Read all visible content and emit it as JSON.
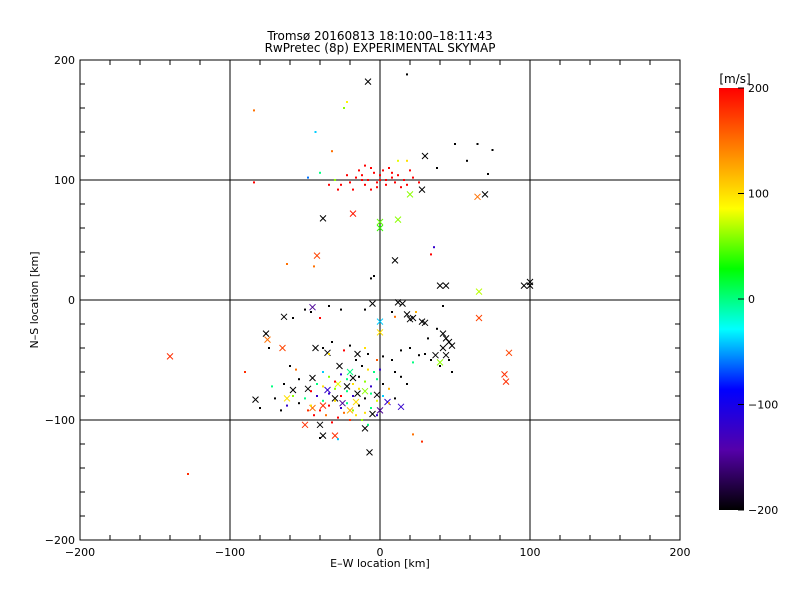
{
  "chart_data": {
    "type": "scatter",
    "title": "Tromsø 20160813 18:10:00–18:11:43",
    "subtitle": "RwPretec (8p) EXPERIMENTAL SKYMAP",
    "xlabel": "E–W location [km]",
    "ylabel": "N–S location [km]",
    "xlim": [
      -200,
      200
    ],
    "ylim": [
      -200,
      200
    ],
    "xticks": [
      -200,
      -100,
      0,
      100,
      200
    ],
    "yticks": [
      -200,
      -100,
      0,
      100,
      200
    ],
    "xtick_labels": [
      "−200",
      "−100",
      "0",
      "100",
      "200"
    ],
    "ytick_labels": [
      "−200",
      "−100",
      "0",
      "100",
      "200"
    ],
    "grid": true,
    "colorbar": {
      "label": "[m/s]",
      "range": [
        -200,
        200
      ],
      "ticks": [
        200,
        100,
        0,
        -100,
        -200
      ],
      "tick_labels": [
        "200",
        "100",
        "0",
        "−100",
        "−200"
      ],
      "colors": [
        "#000000",
        "#5500aa",
        "#0000ff",
        "#00ffff",
        "#00ff00",
        "#ffff00",
        "#ff8000",
        "#ff0000"
      ]
    },
    "series": [
      {
        "marker": "cross",
        "points": [
          [
            -8,
            182,
            -200
          ],
          [
            30,
            120,
            -200
          ],
          [
            70,
            88,
            -200
          ],
          [
            65,
            86,
            150
          ],
          [
            28,
            92,
            -200
          ],
          [
            -38,
            68,
            -200
          ],
          [
            -18,
            72,
            190
          ],
          [
            0,
            65,
            50
          ],
          [
            0,
            60,
            40
          ],
          [
            12,
            67,
            60
          ],
          [
            20,
            88,
            60
          ],
          [
            10,
            33,
            -200
          ],
          [
            -42,
            37,
            170
          ],
          [
            40,
            12,
            -200
          ],
          [
            44,
            12,
            -200
          ],
          [
            96,
            12,
            -200
          ],
          [
            100,
            12,
            -200
          ],
          [
            100,
            15,
            -200
          ],
          [
            66,
            7,
            70
          ],
          [
            -5,
            -3,
            -200
          ],
          [
            12,
            -2,
            -200
          ],
          [
            15,
            -3,
            -200
          ],
          [
            -45,
            -6,
            -150
          ],
          [
            -64,
            -14,
            -200
          ],
          [
            -76,
            -28,
            -200
          ],
          [
            -75,
            -33,
            150
          ],
          [
            0,
            -18,
            -40
          ],
          [
            0,
            -27,
            100
          ],
          [
            18,
            -12,
            -200
          ],
          [
            20,
            -16,
            -200
          ],
          [
            22,
            -15,
            -200
          ],
          [
            28,
            -18,
            -200
          ],
          [
            30,
            -19,
            -200
          ],
          [
            42,
            -28,
            -200
          ],
          [
            44,
            -32,
            -200
          ],
          [
            46,
            -35,
            -200
          ],
          [
            42,
            -40,
            -200
          ],
          [
            48,
            -38,
            -200
          ],
          [
            44,
            -46,
            -200
          ],
          [
            37,
            -46,
            -200
          ],
          [
            40,
            -52,
            60
          ],
          [
            66,
            -15,
            170
          ],
          [
            86,
            -44,
            170
          ],
          [
            83,
            -62,
            180
          ],
          [
            84,
            -68,
            180
          ],
          [
            -140,
            -47,
            180
          ],
          [
            -65,
            -40,
            170
          ],
          [
            -43,
            -40,
            -200
          ],
          [
            -35,
            -44,
            -200
          ],
          [
            -15,
            -45,
            -200
          ],
          [
            -27,
            -55,
            -200
          ],
          [
            -20,
            -60,
            0
          ],
          [
            -45,
            -65,
            -200
          ],
          [
            -48,
            -74,
            -200
          ],
          [
            -58,
            -75,
            -200
          ],
          [
            -35,
            -75,
            -120
          ],
          [
            -28,
            -70,
            80
          ],
          [
            -22,
            -72,
            -200
          ],
          [
            -15,
            -78,
            -200
          ],
          [
            -10,
            -76,
            60
          ],
          [
            -2,
            -79,
            -200
          ],
          [
            5,
            -85,
            -120
          ],
          [
            0,
            -92,
            -150
          ],
          [
            -5,
            -95,
            -200
          ],
          [
            -30,
            -82,
            -200
          ],
          [
            -38,
            -88,
            180
          ],
          [
            -45,
            -90,
            150
          ],
          [
            -83,
            -83,
            -200
          ],
          [
            -40,
            -104,
            -200
          ],
          [
            -50,
            -104,
            180
          ],
          [
            -38,
            -113,
            -200
          ],
          [
            -30,
            -113,
            180
          ],
          [
            -10,
            -107,
            -200
          ],
          [
            -7,
            -127,
            -200
          ],
          [
            -20,
            -92,
            120
          ],
          [
            -25,
            -86,
            -150
          ],
          [
            -16,
            -85,
            100
          ],
          [
            14,
            -89,
            -120
          ],
          [
            -62,
            -82,
            100
          ],
          [
            -18,
            -65,
            -200
          ]
        ]
      },
      {
        "marker": "dot",
        "points": [
          [
            -12,
            104,
            200
          ],
          [
            -8,
            100,
            200
          ],
          [
            -4,
            106,
            200
          ],
          [
            0,
            100,
            200
          ],
          [
            4,
            96,
            200
          ],
          [
            8,
            102,
            200
          ],
          [
            12,
            104,
            200
          ],
          [
            16,
            100,
            200
          ],
          [
            -20,
            98,
            200
          ],
          [
            -16,
            102,
            200
          ],
          [
            -26,
            96,
            200
          ],
          [
            -30,
            100,
            200
          ],
          [
            -2,
            94,
            200
          ],
          [
            2,
            108,
            200
          ],
          [
            6,
            110,
            200
          ],
          [
            10,
            98,
            200
          ],
          [
            14,
            94,
            200
          ],
          [
            18,
            96,
            200
          ],
          [
            22,
            102,
            200
          ],
          [
            -18,
            92,
            200
          ],
          [
            -10,
            96,
            200
          ],
          [
            -6,
            92,
            200
          ],
          [
            0,
            104,
            200
          ],
          [
            4,
            100,
            200
          ],
          [
            -14,
            108,
            200
          ],
          [
            -22,
            104,
            200
          ],
          [
            -6,
            110,
            200
          ],
          [
            26,
            98,
            200
          ],
          [
            -34,
            96,
            200
          ],
          [
            -2,
            98,
            200
          ],
          [
            8,
            106,
            200
          ],
          [
            -10,
            112,
            200
          ],
          [
            20,
            108,
            200
          ],
          [
            -84,
            98,
            200
          ],
          [
            -12,
            100,
            200
          ],
          [
            -28,
            92,
            200
          ],
          [
            12,
            116,
            80
          ],
          [
            18,
            116,
            100
          ],
          [
            -32,
            124,
            150
          ],
          [
            -30,
            100,
            60
          ],
          [
            -22,
            165,
            90
          ],
          [
            -24,
            160,
            60
          ],
          [
            -40,
            106,
            0
          ],
          [
            -48,
            102,
            -60
          ],
          [
            -43,
            140,
            -40
          ],
          [
            -84,
            158,
            150
          ],
          [
            18,
            188,
            -200
          ],
          [
            50,
            130,
            -200
          ],
          [
            65,
            130,
            -200
          ],
          [
            75,
            125,
            -200
          ],
          [
            38,
            110,
            -200
          ],
          [
            58,
            116,
            -200
          ],
          [
            72,
            105,
            -200
          ],
          [
            -62,
            30,
            150
          ],
          [
            -44,
            28,
            150
          ],
          [
            -6,
            18,
            -200
          ],
          [
            -4,
            20,
            -200
          ],
          [
            36,
            44,
            -120
          ],
          [
            34,
            38,
            200
          ],
          [
            42,
            -5,
            -200
          ],
          [
            -10,
            -8,
            -200
          ],
          [
            -34,
            -5,
            -200
          ],
          [
            -26,
            -8,
            -200
          ],
          [
            -50,
            -8,
            -200
          ],
          [
            -46,
            -10,
            -200
          ],
          [
            -40,
            -15,
            200
          ],
          [
            -58,
            -15,
            -200
          ],
          [
            -76,
            -28,
            -200
          ],
          [
            -60,
            -55,
            -200
          ],
          [
            -74,
            -40,
            -200
          ],
          [
            -32,
            -35,
            -200
          ],
          [
            -38,
            -40,
            -200
          ],
          [
            -34,
            -45,
            100
          ],
          [
            -20,
            -38,
            -200
          ],
          [
            -24,
            -42,
            200
          ],
          [
            -10,
            -40,
            100
          ],
          [
            -8,
            -45,
            -200
          ],
          [
            -16,
            -50,
            -200
          ],
          [
            -12,
            -55,
            -200
          ],
          [
            -2,
            -50,
            160
          ],
          [
            2,
            -47,
            -200
          ],
          [
            8,
            -50,
            -200
          ],
          [
            14,
            -42,
            -200
          ],
          [
            20,
            -40,
            -200
          ],
          [
            26,
            -46,
            -200
          ],
          [
            22,
            -52,
            0
          ],
          [
            30,
            -45,
            -200
          ],
          [
            34,
            -50,
            -200
          ],
          [
            40,
            -55,
            -200
          ],
          [
            46,
            -50,
            -200
          ],
          [
            48,
            -60,
            -200
          ],
          [
            8,
            -10,
            -200
          ],
          [
            10,
            -14,
            150
          ],
          [
            24,
            -10,
            120
          ],
          [
            38,
            -24,
            -200
          ],
          [
            32,
            -32,
            -200
          ],
          [
            -38,
            -60,
            -40
          ],
          [
            -34,
            -64,
            60
          ],
          [
            -30,
            -68,
            200
          ],
          [
            -26,
            -62,
            -120
          ],
          [
            -22,
            -66,
            0
          ],
          [
            -18,
            -70,
            100
          ],
          [
            -14,
            -64,
            -200
          ],
          [
            -10,
            -68,
            60
          ],
          [
            -6,
            -72,
            -120
          ],
          [
            -2,
            -66,
            0
          ],
          [
            2,
            -70,
            -200
          ],
          [
            6,
            -74,
            120
          ],
          [
            -42,
            -70,
            0
          ],
          [
            -38,
            -72,
            100
          ],
          [
            -34,
            -78,
            -120
          ],
          [
            -30,
            -74,
            60
          ],
          [
            -26,
            -80,
            200
          ],
          [
            -22,
            -76,
            0
          ],
          [
            -18,
            -80,
            -120
          ],
          [
            -14,
            -74,
            100
          ],
          [
            -10,
            -82,
            -200
          ],
          [
            -6,
            -78,
            0
          ],
          [
            -2,
            -84,
            80
          ],
          [
            2,
            -80,
            -40
          ],
          [
            6,
            -86,
            120
          ],
          [
            10,
            -82,
            -200
          ],
          [
            -46,
            -76,
            200
          ],
          [
            -42,
            -80,
            -120
          ],
          [
            -38,
            -84,
            0
          ],
          [
            -34,
            -88,
            200
          ],
          [
            -30,
            -84,
            100
          ],
          [
            -26,
            -90,
            -120
          ],
          [
            -22,
            -86,
            0
          ],
          [
            -18,
            -92,
            60
          ],
          [
            -14,
            -88,
            -200
          ],
          [
            -10,
            -94,
            100
          ],
          [
            -6,
            -90,
            0
          ],
          [
            -2,
            -96,
            -120
          ],
          [
            -50,
            -82,
            0
          ],
          [
            -46,
            -88,
            100
          ],
          [
            -54,
            -86,
            -200
          ],
          [
            -58,
            -80,
            60
          ],
          [
            -62,
            -88,
            -120
          ],
          [
            -40,
            -92,
            200
          ],
          [
            -36,
            -96,
            150
          ],
          [
            -28,
            -98,
            200
          ],
          [
            -24,
            -94,
            150
          ],
          [
            -44,
            -96,
            200
          ],
          [
            -48,
            -92,
            180
          ],
          [
            -32,
            -102,
            200
          ],
          [
            -20,
            -100,
            180
          ],
          [
            -16,
            -96,
            100
          ],
          [
            -12,
            -100,
            60
          ],
          [
            -8,
            -104,
            0
          ],
          [
            -90,
            -60,
            180
          ],
          [
            -56,
            -58,
            150
          ],
          [
            -54,
            -66,
            -200
          ],
          [
            -64,
            -70,
            -200
          ],
          [
            -72,
            -72,
            0
          ],
          [
            -70,
            -82,
            -200
          ],
          [
            -66,
            -92,
            -200
          ],
          [
            -80,
            -90,
            -200
          ],
          [
            -28,
            -116,
            -40
          ],
          [
            -40,
            -115,
            -200
          ],
          [
            22,
            -112,
            150
          ],
          [
            28,
            -118,
            180
          ],
          [
            -128,
            -145,
            180
          ],
          [
            10,
            -60,
            -200
          ],
          [
            14,
            -64,
            -200
          ],
          [
            18,
            -70,
            -200
          ],
          [
            -4,
            -60,
            0
          ],
          [
            -8,
            -58,
            100
          ],
          [
            0,
            -58,
            -120
          ]
        ]
      }
    ]
  }
}
